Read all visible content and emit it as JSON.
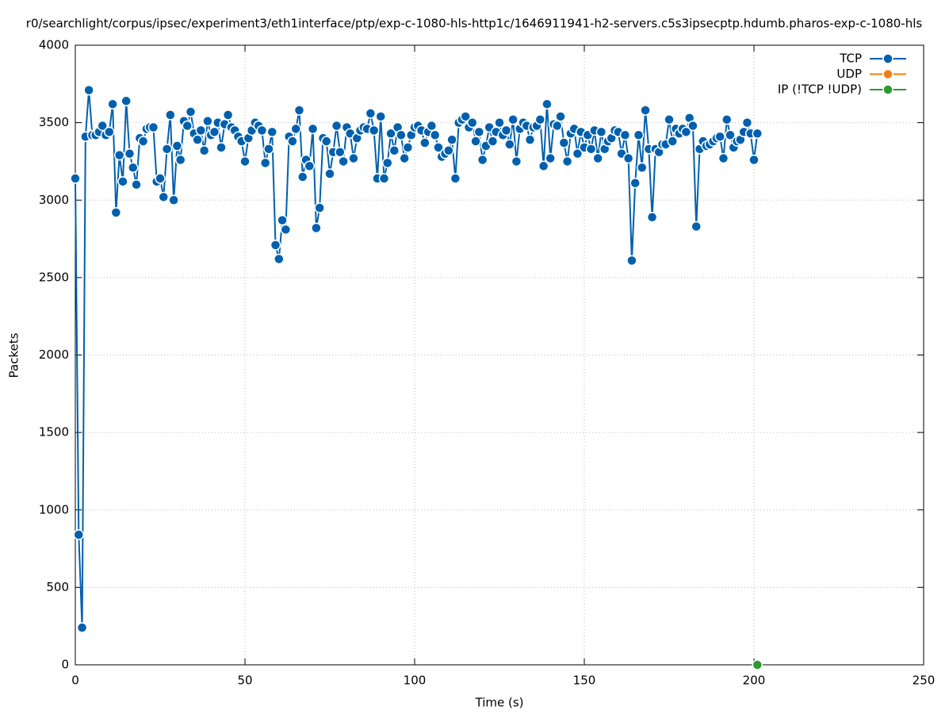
{
  "chart_data": {
    "type": "line",
    "title": "r0/searchlight/corpus/ipsec/experiment3/eth1interface/ptp/exp-c-1080-hls-http1c/1646911941-h2-servers.c5s3ipsecptp.hdumb.pharos-exp-c-1080-hls",
    "xlabel": "Time (s)",
    "ylabel": "Packets",
    "xlim": [
      0,
      250
    ],
    "xticks": [
      0,
      50,
      100,
      150,
      200,
      250
    ],
    "ylim": [
      0,
      4000
    ],
    "yticks": [
      0,
      500,
      1000,
      1500,
      2000,
      2500,
      3000,
      3500,
      4000
    ],
    "grid": true,
    "legend": "top-right",
    "series": [
      {
        "name": "TCP",
        "color": "#0060ad",
        "x": [
          0,
          1,
          2,
          3,
          4,
          5,
          6,
          7,
          8,
          9,
          10,
          11,
          12,
          13,
          14,
          15,
          16,
          17,
          18,
          19,
          20,
          21,
          22,
          23,
          24,
          25,
          26,
          27,
          28,
          29,
          30,
          31,
          32,
          33,
          34,
          35,
          36,
          37,
          38,
          39,
          40,
          41,
          42,
          43,
          44,
          45,
          46,
          47,
          48,
          49,
          50,
          51,
          52,
          53,
          54,
          55,
          56,
          57,
          58,
          59,
          60,
          61,
          62,
          63,
          64,
          65,
          66,
          67,
          68,
          69,
          70,
          71,
          72,
          73,
          74,
          75,
          76,
          77,
          78,
          79,
          80,
          81,
          82,
          83,
          84,
          85,
          86,
          87,
          88,
          89,
          90,
          91,
          92,
          93,
          94,
          95,
          96,
          97,
          98,
          99,
          100,
          101,
          102,
          103,
          104,
          105,
          106,
          107,
          108,
          109,
          110,
          111,
          112,
          113,
          114,
          115,
          116,
          117,
          118,
          119,
          120,
          121,
          122,
          123,
          124,
          125,
          126,
          127,
          128,
          129,
          130,
          131,
          132,
          133,
          134,
          135,
          136,
          137,
          138,
          139,
          140,
          141,
          142,
          143,
          144,
          145,
          146,
          147,
          148,
          149,
          150,
          151,
          152,
          153,
          154,
          155,
          156,
          157,
          158,
          159,
          160,
          161,
          162,
          163,
          164,
          165,
          166,
          167,
          168,
          169,
          170,
          171,
          172,
          173,
          174,
          175,
          176,
          177,
          178,
          179,
          180,
          181,
          182,
          183,
          184,
          185,
          186,
          187,
          188,
          189,
          190,
          191,
          192,
          193,
          194,
          195,
          196,
          197,
          198,
          199,
          200,
          201
        ],
        "values": [
          3140,
          840,
          240,
          3410,
          3710,
          3420,
          3420,
          3440,
          3480,
          3420,
          3440,
          3620,
          2920,
          3290,
          3120,
          3640,
          3300,
          3210,
          3100,
          3400,
          3380,
          3460,
          3470,
          3470,
          3120,
          3140,
          3020,
          3330,
          3550,
          3000,
          3350,
          3260,
          3510,
          3480,
          3570,
          3430,
          3390,
          3450,
          3320,
          3510,
          3420,
          3440,
          3500,
          3340,
          3490,
          3550,
          3470,
          3450,
          3410,
          3380,
          3250,
          3400,
          3450,
          3500,
          3480,
          3450,
          3240,
          3330,
          3440,
          2710,
          2620,
          2870,
          2810,
          3410,
          3380,
          3460,
          3580,
          3150,
          3260,
          3220,
          3460,
          2820,
          2950,
          3400,
          3380,
          3170,
          3310,
          3480,
          3310,
          3250,
          3470,
          3430,
          3270,
          3400,
          3450,
          3470,
          3460,
          3560,
          3450,
          3140,
          3540,
          3140,
          3240,
          3430,
          3320,
          3470,
          3420,
          3270,
          3340,
          3420,
          3470,
          3480,
          3450,
          3370,
          3440,
          3480,
          3420,
          3340,
          3280,
          3300,
          3320,
          3390,
          3140,
          3500,
          3520,
          3540,
          3470,
          3500,
          3380,
          3440,
          3260,
          3350,
          3470,
          3380,
          3440,
          3500,
          3420,
          3450,
          3360,
          3520,
          3250,
          3460,
          3500,
          3480,
          3390,
          3470,
          3480,
          3520,
          3220,
          3620,
          3270,
          3490,
          3480,
          3540,
          3370,
          3250,
          3430,
          3460,
          3300,
          3440,
          3340,
          3420,
          3330,
          3450,
          3270,
          3440,
          3330,
          3380,
          3400,
          3450,
          3440,
          3300,
          3420,
          3270,
          2610,
          3110,
          3420,
          3210,
          3580,
          3330,
          2890,
          3330,
          3310,
          3360,
          3360,
          3520,
          3380,
          3460,
          3430,
          3460,
          3440,
          3530,
          3480,
          2830,
          3330,
          3380,
          3350,
          3360,
          3380,
          3400,
          3410,
          3270,
          3520,
          3420,
          3340,
          3380,
          3390,
          3440,
          3500,
          3430,
          3260,
          3430
        ]
      },
      {
        "name": "UDP",
        "color": "#f07f13",
        "x": [],
        "values": []
      },
      {
        "name": "IP (!TCP  !UDP)",
        "color": "#2e9a33",
        "x": [
          201
        ],
        "values": [
          0
        ]
      }
    ]
  }
}
